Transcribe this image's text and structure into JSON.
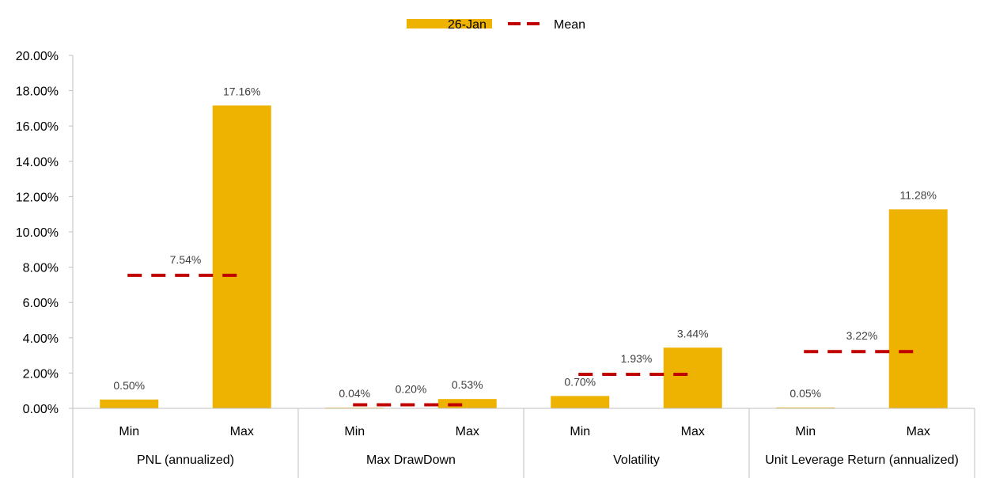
{
  "chart_data": {
    "type": "bar",
    "groups": [
      {
        "label": "PNL (annualized)",
        "categories": [
          "Min",
          "Max"
        ],
        "values": [
          0.5,
          17.16
        ],
        "value_labels": [
          "0.50%",
          "17.16%"
        ],
        "mean": 7.54,
        "mean_label": "7.54%"
      },
      {
        "label": "Max DrawDown",
        "categories": [
          "Min",
          "Max"
        ],
        "values": [
          0.04,
          0.53
        ],
        "value_labels": [
          "0.04%",
          "0.53%"
        ],
        "mean": 0.2,
        "mean_label": "0.20%"
      },
      {
        "label": "Volatility",
        "categories": [
          "Min",
          "Max"
        ],
        "values": [
          0.7,
          3.44
        ],
        "value_labels": [
          "0.70%",
          "3.44%"
        ],
        "mean": 1.93,
        "mean_label": "1.93%"
      },
      {
        "label": "Unit Leverage Return (annualized)",
        "categories": [
          "Min",
          "Max"
        ],
        "values": [
          0.05,
          11.28
        ],
        "value_labels": [
          "0.05%",
          "11.28%"
        ],
        "mean": 3.22,
        "mean_label": "3.22%"
      }
    ],
    "series": [
      {
        "name": "26-Jan",
        "kind": "bar",
        "color": "#EEB200"
      },
      {
        "name": "Mean",
        "kind": "dashed-line",
        "color": "#C00000"
      }
    ],
    "ylim": [
      0,
      20
    ],
    "yticks": [
      0,
      2,
      4,
      6,
      8,
      10,
      12,
      14,
      16,
      18,
      20
    ],
    "ytick_labels": [
      "0.00%",
      "2.00%",
      "4.00%",
      "6.00%",
      "8.00%",
      "10.00%",
      "12.00%",
      "14.00%",
      "16.00%",
      "18.00%",
      "20.00%"
    ],
    "legend_position": "top-center",
    "grid": false
  }
}
